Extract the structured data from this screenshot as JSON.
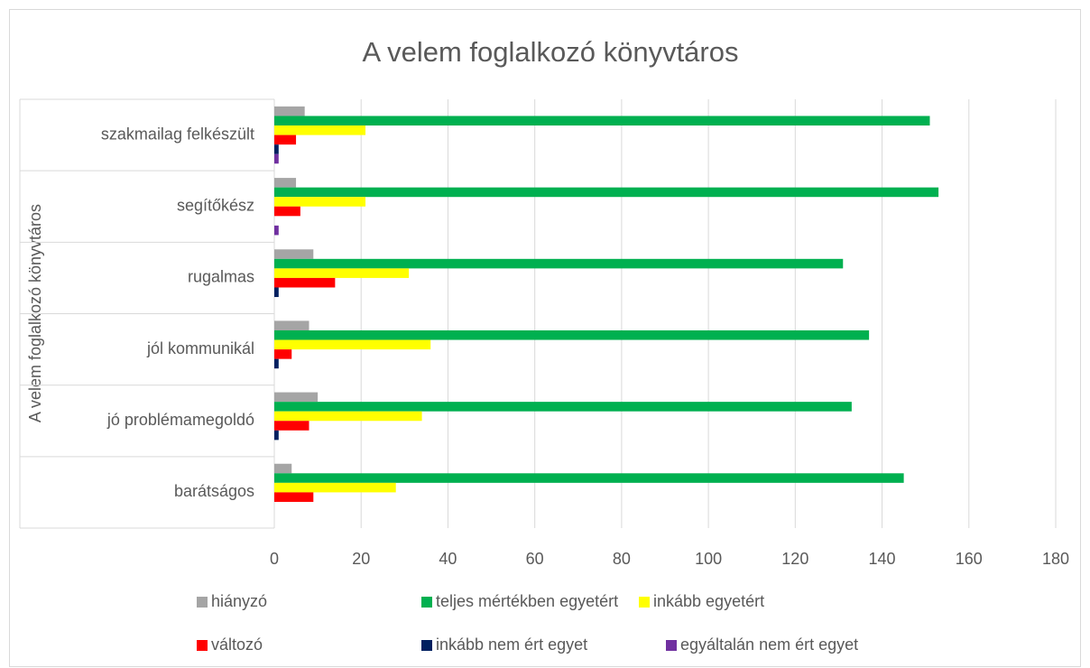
{
  "chart_data": {
    "type": "hbar",
    "title": "A velem foglalkozó könyvtáros",
    "y_label": "A velem foglalkozó könyvtáros",
    "categories": [
      "szakmailag felkészült",
      "segítőkész",
      "rugalmas",
      "jól kommunikál",
      "jó problémamegoldó",
      "barátságos"
    ],
    "series": [
      {
        "name": "hiányzó",
        "color": "#a5a5a5",
        "values": [
          7,
          5,
          9,
          8,
          10,
          4
        ]
      },
      {
        "name": "teljes mértékben egyetért",
        "color": "#00b050",
        "values": [
          151,
          153,
          131,
          137,
          133,
          145
        ]
      },
      {
        "name": "inkább egyetért",
        "color": "#ffff00",
        "values": [
          21,
          21,
          31,
          36,
          34,
          28
        ]
      },
      {
        "name": "változó",
        "color": "#ff0000",
        "values": [
          5,
          6,
          14,
          4,
          8,
          9
        ]
      },
      {
        "name": "inkább nem ért egyet",
        "color": "#002060",
        "values": [
          1,
          0,
          1,
          1,
          1,
          0
        ]
      },
      {
        "name": "egyáltalán nem ért egyet",
        "color": "#7030a0",
        "values": [
          1,
          1,
          0,
          0,
          0,
          0
        ]
      }
    ],
    "xlim": [
      0,
      180
    ],
    "xticks": [
      0,
      20,
      40,
      60,
      80,
      100,
      120,
      140,
      160,
      180
    ],
    "grid": true,
    "legend": "bottom"
  }
}
